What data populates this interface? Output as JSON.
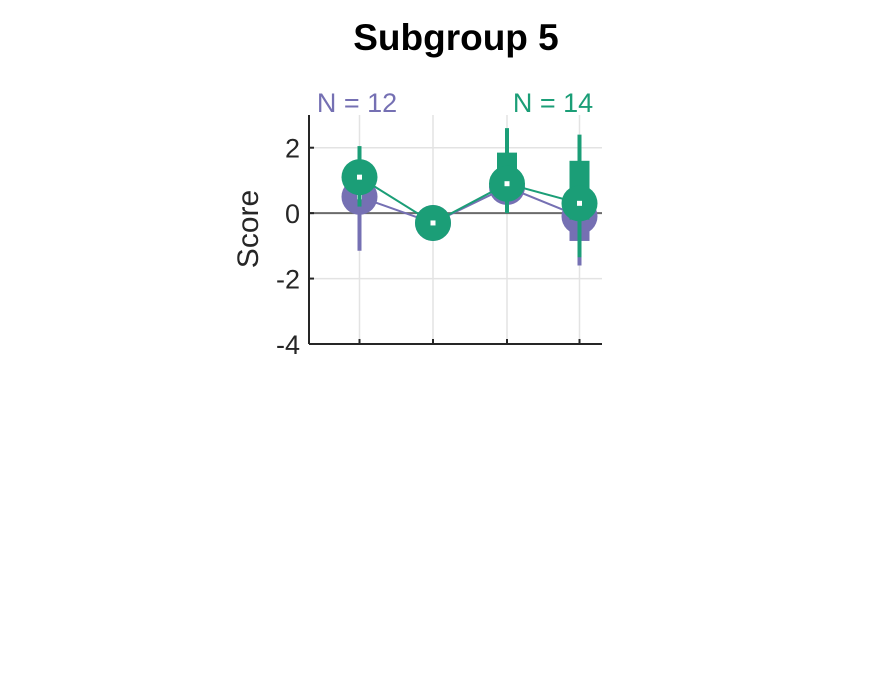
{
  "chart_data": {
    "type": "scatter",
    "title": "Subgroup 5",
    "ylabel": "Score",
    "xlabel": "",
    "ylim": [
      -4,
      3
    ],
    "yticks": [
      2,
      0,
      -2,
      -4
    ],
    "x": [
      1,
      2,
      3,
      4
    ],
    "grid": true,
    "group_labels": [
      {
        "text": "N = 12",
        "color": "#7570b3"
      },
      {
        "text": "N = 14",
        "color": "#1b9e77"
      }
    ],
    "series": [
      {
        "color": "#7570b3",
        "values": [
          0.5,
          -0.3,
          0.8,
          -0.1
        ],
        "whisker_low": [
          -1.15,
          -0.3,
          0.4,
          -1.6
        ],
        "whisker_high": [
          1.3,
          -0.3,
          1.4,
          0.5
        ],
        "box_low": [
          0.2,
          -0.3,
          0.6,
          -0.85
        ],
        "box_high": [
          0.85,
          -0.3,
          1.0,
          0.35
        ]
      },
      {
        "color": "#1b9e77",
        "values": [
          1.1,
          -0.3,
          0.9,
          0.3
        ],
        "whisker_low": [
          0.2,
          -0.3,
          0.0,
          -1.35
        ],
        "whisker_high": [
          2.05,
          -0.3,
          2.6,
          2.4
        ],
        "box_low": [
          0.75,
          -0.3,
          0.55,
          -0.2
        ],
        "box_high": [
          1.45,
          -0.3,
          1.85,
          1.6
        ]
      }
    ]
  }
}
